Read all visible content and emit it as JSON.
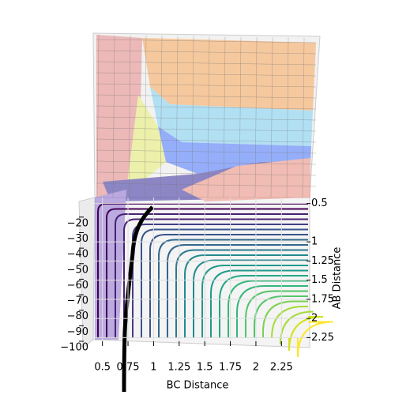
{
  "chart_data": {
    "type": "surface3d",
    "x_label": "BC Distance",
    "y_label": "AB Distance",
    "xlim": [
      0.41,
      2.51
    ],
    "xticks": [
      0.5,
      0.75,
      1.0,
      1.25,
      1.5,
      1.75,
      2.0,
      2.25
    ],
    "ylim": [
      0.38,
      2.38
    ],
    "yticks": [
      0.5,
      1.0,
      1.25,
      1.5,
      1.75,
      2.0,
      2.25
    ],
    "zlim": [
      -100,
      -15
    ],
    "zticks": [
      {
        "value": -20,
        "label": "−20"
      },
      {
        "value": -30,
        "label": "−30"
      },
      {
        "value": -40,
        "label": "−40"
      },
      {
        "value": -50,
        "label": "−50"
      },
      {
        "value": -60,
        "label": "−60"
      },
      {
        "value": -70,
        "label": "−70"
      },
      {
        "value": -80,
        "label": "−80"
      },
      {
        "value": -90,
        "label": "−90"
      },
      {
        "value": -100,
        "label": "−100"
      }
    ],
    "grid": true
  }
}
